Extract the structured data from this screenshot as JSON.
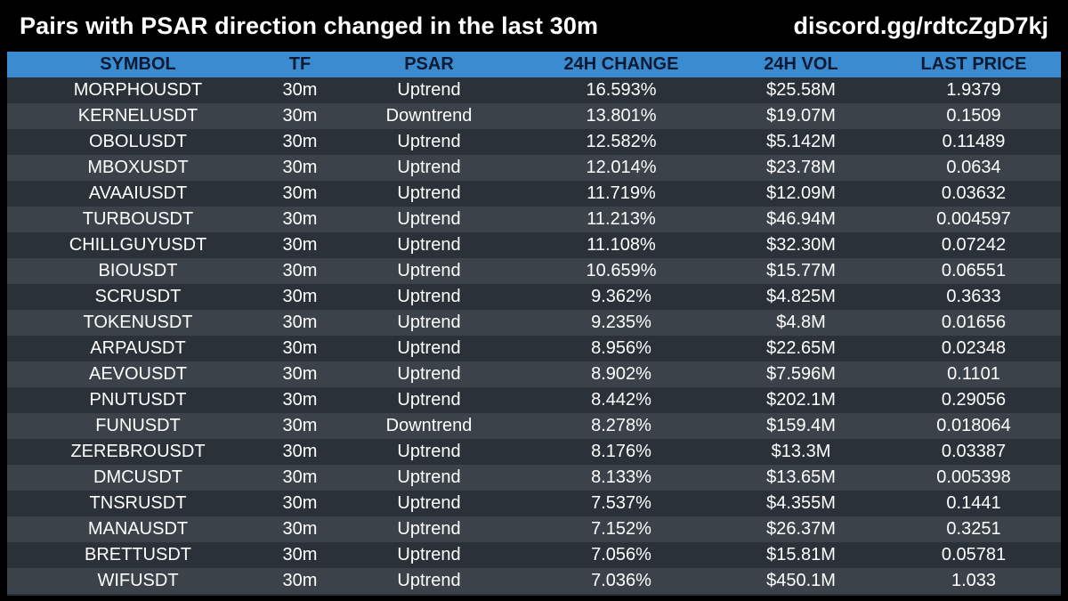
{
  "header": {
    "title": "Pairs with PSAR direction changed in the last 30m",
    "discord": "discord.gg/rdtcZgD7kj"
  },
  "table": {
    "columns": [
      "SYMBOL",
      "TF",
      "PSAR",
      "24H CHANGE",
      "24H VOL",
      "LAST PRICE"
    ],
    "rows": [
      [
        "MORPHOUSDT",
        "30m",
        "Uptrend",
        "16.593%",
        "$25.58M",
        "1.9379"
      ],
      [
        "KERNELUSDT",
        "30m",
        "Downtrend",
        "13.801%",
        "$19.07M",
        "0.1509"
      ],
      [
        "OBOLUSDT",
        "30m",
        "Uptrend",
        "12.582%",
        "$5.142M",
        "0.11489"
      ],
      [
        "MBOXUSDT",
        "30m",
        "Uptrend",
        "12.014%",
        "$23.78M",
        "0.0634"
      ],
      [
        "AVAAIUSDT",
        "30m",
        "Uptrend",
        "11.719%",
        "$12.09M",
        "0.03632"
      ],
      [
        "TURBOUSDT",
        "30m",
        "Uptrend",
        "11.213%",
        "$46.94M",
        "0.004597"
      ],
      [
        "CHILLGUYUSDT",
        "30m",
        "Uptrend",
        "11.108%",
        "$32.30M",
        "0.07242"
      ],
      [
        "BIOUSDT",
        "30m",
        "Uptrend",
        "10.659%",
        "$15.77M",
        "0.06551"
      ],
      [
        "SCRUSDT",
        "30m",
        "Uptrend",
        "9.362%",
        "$4.825M",
        "0.3633"
      ],
      [
        "TOKENUSDT",
        "30m",
        "Uptrend",
        "9.235%",
        "$4.8M",
        "0.01656"
      ],
      [
        "ARPAUSDT",
        "30m",
        "Uptrend",
        "8.956%",
        "$22.65M",
        "0.02348"
      ],
      [
        "AEVOUSDT",
        "30m",
        "Uptrend",
        "8.902%",
        "$7.596M",
        "0.1101"
      ],
      [
        "PNUTUSDT",
        "30m",
        "Uptrend",
        "8.442%",
        "$202.1M",
        "0.29056"
      ],
      [
        "FUNUSDT",
        "30m",
        "Downtrend",
        "8.278%",
        "$159.4M",
        "0.018064"
      ],
      [
        "ZEREBROUSDT",
        "30m",
        "Uptrend",
        "8.176%",
        "$13.3M",
        "0.03387"
      ],
      [
        "DMCUSDT",
        "30m",
        "Uptrend",
        "8.133%",
        "$13.65M",
        "0.005398"
      ],
      [
        "TNSRUSDT",
        "30m",
        "Uptrend",
        "7.537%",
        "$4.355M",
        "0.1441"
      ],
      [
        "MANAUSDT",
        "30m",
        "Uptrend",
        "7.152%",
        "$26.37M",
        "0.3251"
      ],
      [
        "BRETTUSDT",
        "30m",
        "Uptrend",
        "7.056%",
        "$15.81M",
        "0.05781"
      ],
      [
        "WIFUSDT",
        "30m",
        "Uptrend",
        "7.036%",
        "$450.1M",
        "1.033"
      ]
    ]
  },
  "colors": {
    "background": "#000000",
    "header_row": "#3a8bd0",
    "header_text": "#0b1a33",
    "row_odd": "#2a3138",
    "row_even": "#3b4249",
    "text": "#ffffff"
  }
}
